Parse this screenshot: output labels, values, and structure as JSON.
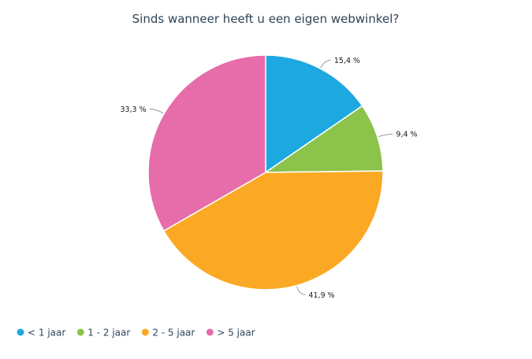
{
  "chart_data": {
    "type": "pie",
    "title": "Sinds wanneer heeft u een eigen webwinkel?",
    "legend_position": "bottom-left",
    "value_suffix": " %",
    "slices": [
      {
        "label": "< 1 jaar",
        "value": 15.4,
        "display": "15,4 %",
        "color": "#1ea8e0"
      },
      {
        "label": "1 - 2 jaar",
        "value": 9.4,
        "display": "9,4 %",
        "color": "#8cc34b"
      },
      {
        "label": "2 - 5 jaar",
        "value": 41.9,
        "display": "41,9 %",
        "color": "#fba924"
      },
      {
        "label": "> 5 jaar",
        "value": 33.3,
        "display": "33,3 %",
        "color": "#e66caa"
      }
    ]
  }
}
